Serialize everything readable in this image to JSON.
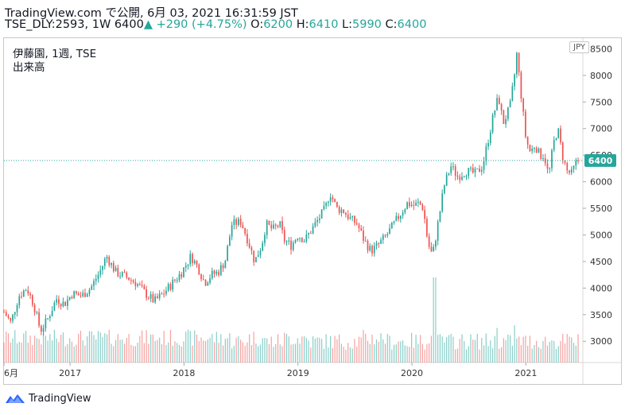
{
  "header": {
    "line1": "TradingView.com で公開, 6月 03, 2021 16:31:59 JST",
    "symbol": "TSE_DLY:2593, 1W",
    "price": "6400",
    "arrow": "▲",
    "change": "+290 (+4.75%)",
    "o_label": "O:",
    "o_value": "6200",
    "h_label": "H:",
    "h_value": "6410",
    "l_label": "L:",
    "l_value": "5990",
    "c_label": "C:",
    "c_value": "6400"
  },
  "legend": {
    "title": "伊藤園, 1週, TSE",
    "volume": "出来高"
  },
  "currency": "JPY",
  "footer": {
    "brand": "TradingView"
  },
  "colors": {
    "up": "#26a69a",
    "down": "#ef5350",
    "price_line": "#26a69a"
  },
  "chart_data": {
    "type": "candlestick",
    "interval": "1W",
    "symbol": "TSE_DLY:2593",
    "current_price": 6400,
    "y_ticks": [
      3000,
      3500,
      4000,
      4500,
      5000,
      5500,
      6000,
      6500,
      7000,
      7500,
      8000,
      8500
    ],
    "ylim": [
      2600,
      8700
    ],
    "x_ticks": [
      {
        "label": "6月",
        "year": 2016.42
      },
      {
        "label": "2017",
        "year": 2017.0
      },
      {
        "label": "2018",
        "year": 2018.0
      },
      {
        "label": "2019",
        "year": 2019.0
      },
      {
        "label": "2020",
        "year": 2020.0
      },
      {
        "label": "2021",
        "year": 2021.0
      }
    ],
    "xlim": [
      2016.42,
      2021.5
    ],
    "price_path": [
      [
        2016.42,
        3550
      ],
      [
        2016.48,
        3350
      ],
      [
        2016.55,
        3850
      ],
      [
        2016.62,
        4000
      ],
      [
        2016.68,
        3700
      ],
      [
        2016.74,
        3200
      ],
      [
        2016.8,
        3400
      ],
      [
        2016.88,
        3800
      ],
      [
        2016.95,
        3700
      ],
      [
        2017.02,
        3900
      ],
      [
        2017.1,
        3850
      ],
      [
        2017.18,
        4000
      ],
      [
        2017.26,
        4300
      ],
      [
        2017.32,
        4600
      ],
      [
        2017.4,
        4300
      ],
      [
        2017.5,
        4200
      ],
      [
        2017.58,
        4100
      ],
      [
        2017.66,
        3900
      ],
      [
        2017.74,
        3750
      ],
      [
        2017.82,
        3900
      ],
      [
        2017.9,
        4100
      ],
      [
        2017.98,
        4300
      ],
      [
        2018.06,
        4600
      ],
      [
        2018.12,
        4400
      ],
      [
        2018.18,
        4100
      ],
      [
        2018.24,
        4250
      ],
      [
        2018.3,
        4300
      ],
      [
        2018.36,
        4500
      ],
      [
        2018.42,
        5200
      ],
      [
        2018.5,
        5250
      ],
      [
        2018.56,
        4900
      ],
      [
        2018.62,
        4500
      ],
      [
        2018.68,
        4800
      ],
      [
        2018.72,
        5200
      ],
      [
        2018.78,
        5100
      ],
      [
        2018.84,
        5200
      ],
      [
        2018.88,
        4900
      ],
      [
        2018.94,
        4800
      ],
      [
        2019.0,
        5000
      ],
      [
        2019.06,
        4900
      ],
      [
        2019.12,
        5100
      ],
      [
        2019.18,
        5300
      ],
      [
        2019.24,
        5500
      ],
      [
        2019.28,
        5800
      ],
      [
        2019.34,
        5500
      ],
      [
        2019.4,
        5450
      ],
      [
        2019.46,
        5300
      ],
      [
        2019.52,
        5200
      ],
      [
        2019.58,
        4900
      ],
      [
        2019.64,
        4700
      ],
      [
        2019.7,
        4800
      ],
      [
        2019.78,
        5000
      ],
      [
        2019.84,
        5200
      ],
      [
        2019.9,
        5400
      ],
      [
        2019.96,
        5600
      ],
      [
        2020.02,
        5550
      ],
      [
        2020.06,
        5600
      ],
      [
        2020.1,
        5500
      ],
      [
        2020.14,
        4850
      ],
      [
        2020.18,
        4600
      ],
      [
        2020.22,
        5100
      ],
      [
        2020.28,
        5900
      ],
      [
        2020.34,
        6300
      ],
      [
        2020.4,
        6100
      ],
      [
        2020.48,
        6200
      ],
      [
        2020.56,
        6150
      ],
      [
        2020.62,
        6300
      ],
      [
        2020.66,
        6700
      ],
      [
        2020.72,
        7300
      ],
      [
        2020.76,
        7600
      ],
      [
        2020.8,
        7100
      ],
      [
        2020.86,
        7400
      ],
      [
        2020.9,
        8000
      ],
      [
        2020.92,
        8400
      ],
      [
        2020.96,
        7600
      ],
      [
        2021.0,
        6800
      ],
      [
        2021.04,
        6550
      ],
      [
        2021.08,
        6700
      ],
      [
        2021.12,
        6500
      ],
      [
        2021.16,
        6500
      ],
      [
        2021.2,
        6100
      ],
      [
        2021.24,
        6700
      ],
      [
        2021.28,
        7000
      ],
      [
        2021.32,
        6500
      ],
      [
        2021.36,
        6200
      ],
      [
        2021.4,
        6150
      ],
      [
        2021.45,
        6400
      ]
    ],
    "volume_spikes": [
      [
        2020.2,
        4200
      ],
      [
        2020.9,
        3300
      ],
      [
        2020.74,
        3250
      ]
    ]
  }
}
